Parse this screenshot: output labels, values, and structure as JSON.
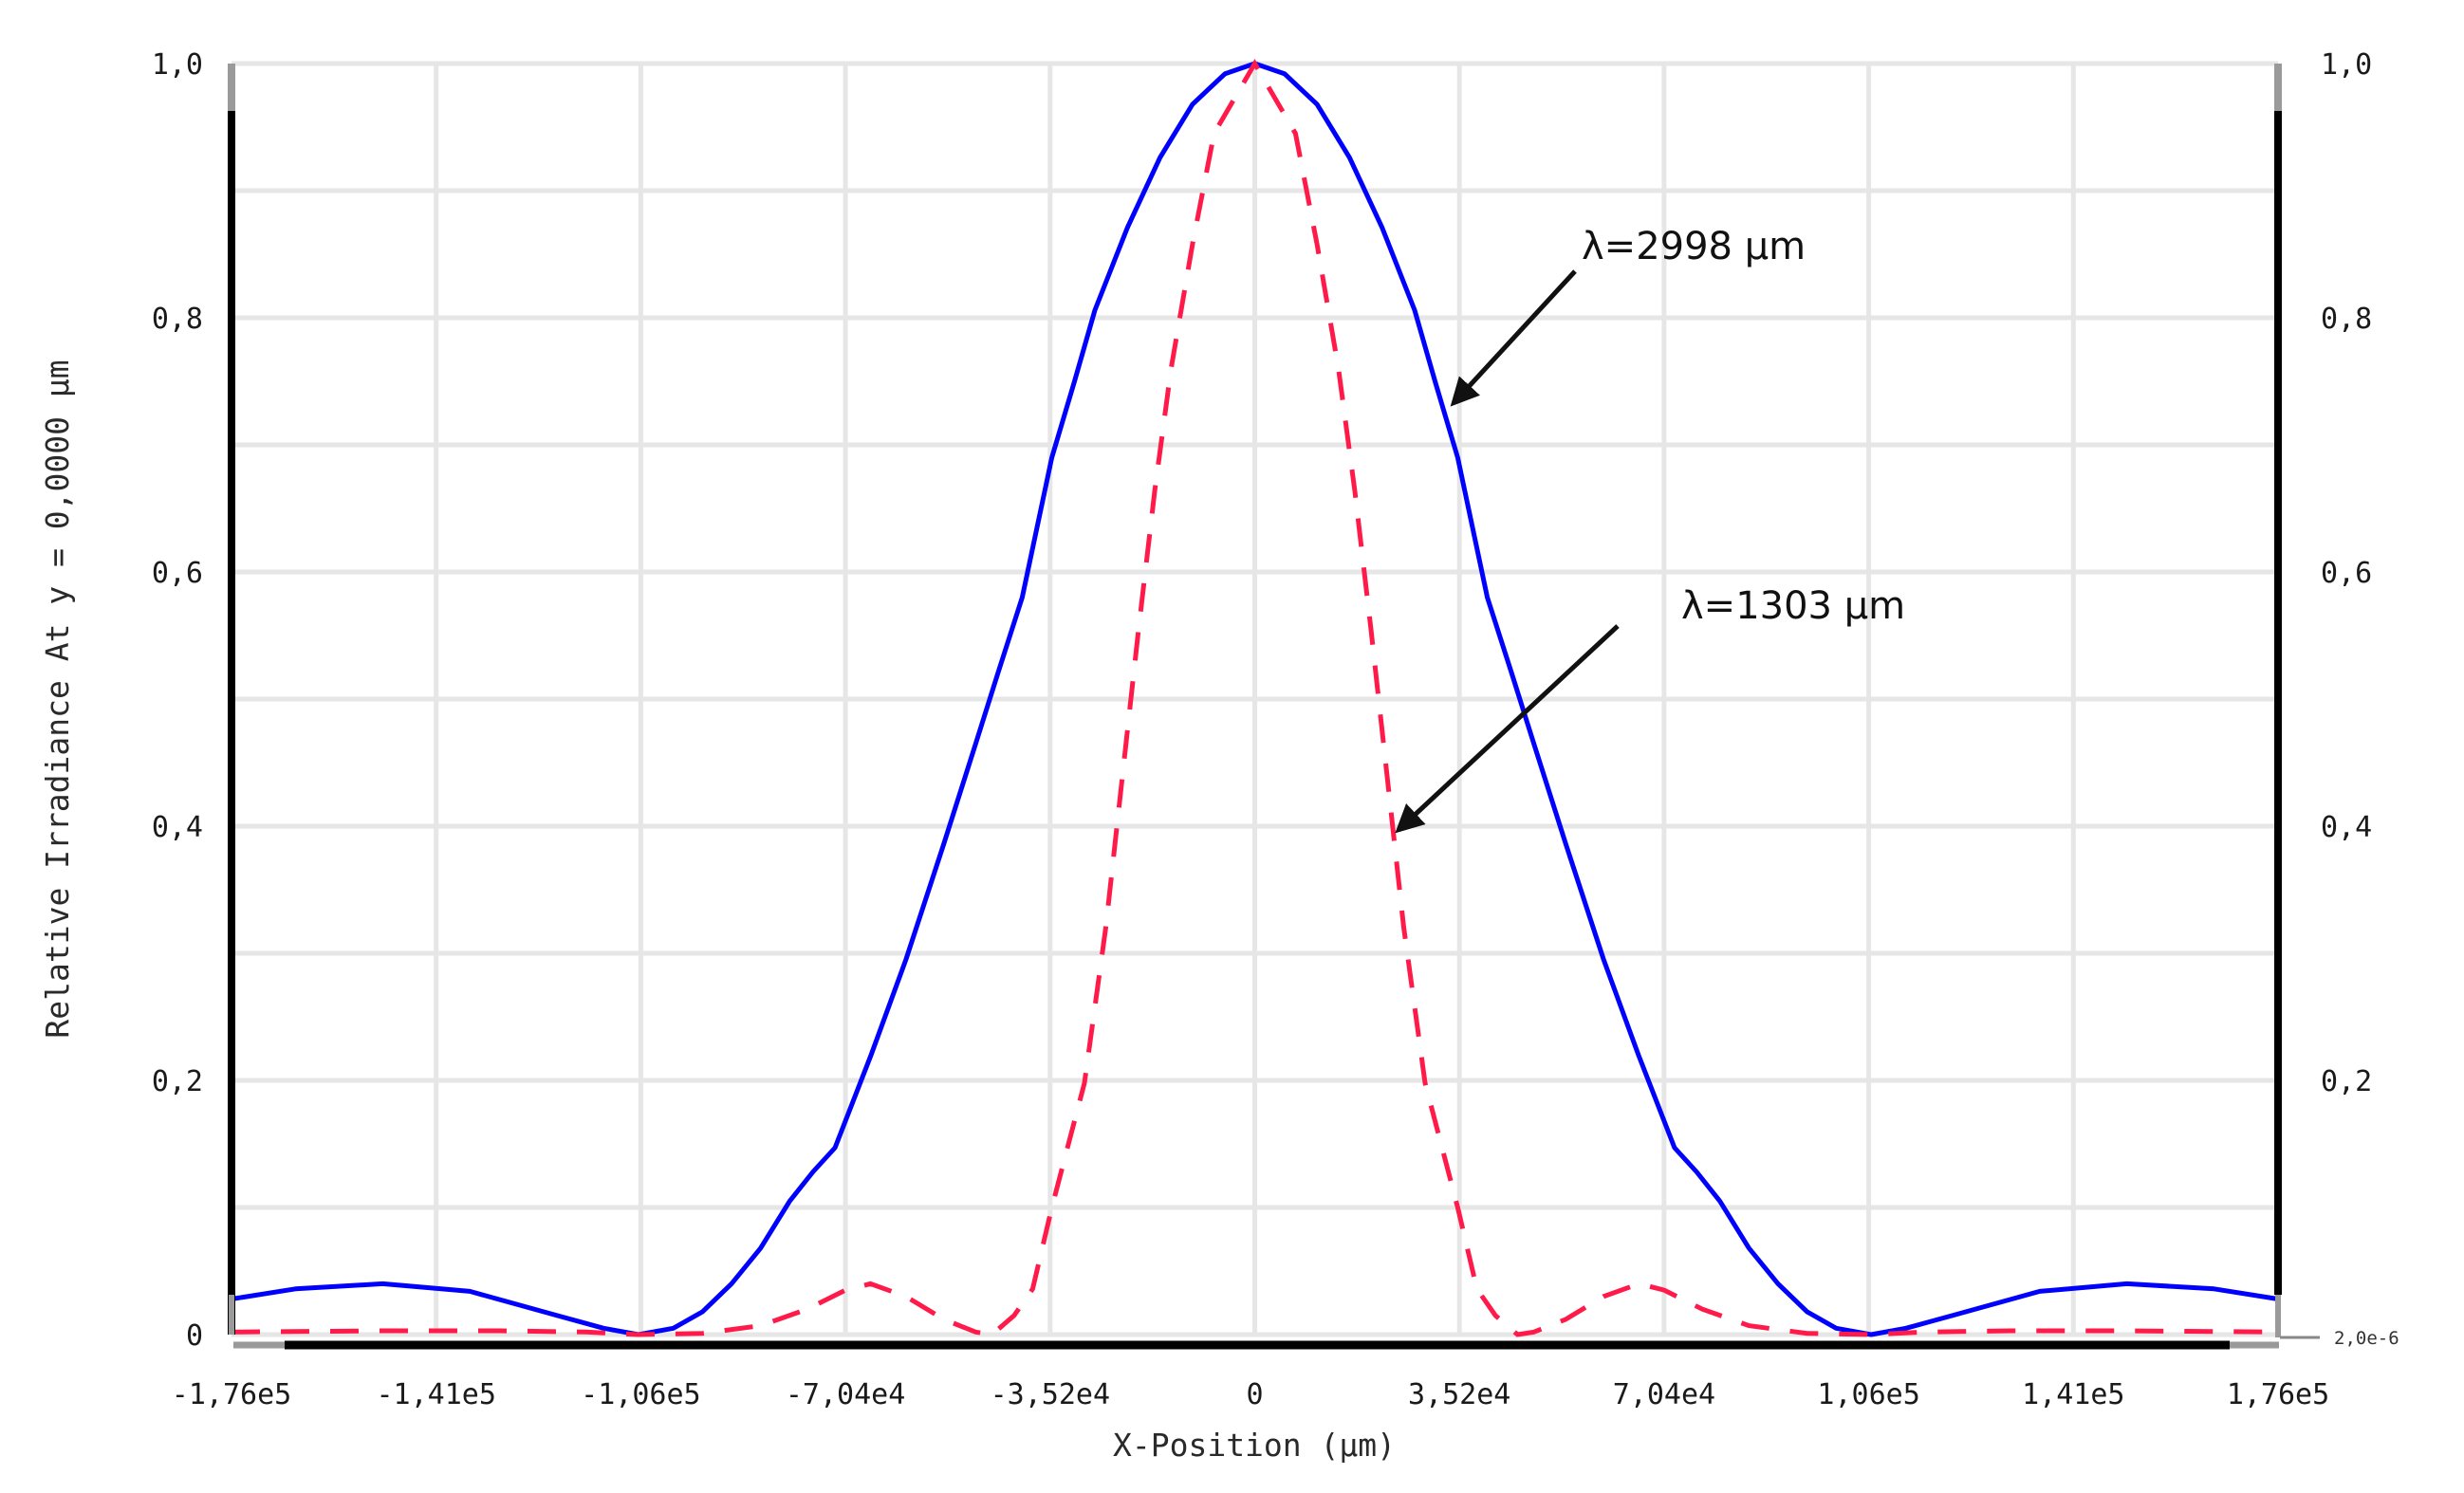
{
  "chart_data": {
    "type": "line",
    "title": "",
    "xlabel": "X-Position (µm)",
    "ylabel": "Relative Irradiance At y = 0,0000 µm",
    "xlim": [
      -176000,
      176000
    ],
    "ylim": [
      0,
      1.0
    ],
    "grid": true,
    "legend": "none (inline annotations with arrows)",
    "x_ticks": [
      {
        "value": -176000,
        "label": "-1,76e5"
      },
      {
        "value": -140800,
        "label": "-1,41e5"
      },
      {
        "value": -105600,
        "label": "-1,06e5"
      },
      {
        "value": -70400,
        "label": "-7,04e4"
      },
      {
        "value": -35200,
        "label": "-3,52e4"
      },
      {
        "value": 0,
        "label": "0"
      },
      {
        "value": 35200,
        "label": "3,52e4"
      },
      {
        "value": 70400,
        "label": "7,04e4"
      },
      {
        "value": 105600,
        "label": "1,06e5"
      },
      {
        "value": 140800,
        "label": "1,41e5"
      },
      {
        "value": 176000,
        "label": "1,76e5"
      }
    ],
    "y_ticks_left": [
      {
        "value": 0,
        "label": "0"
      },
      {
        "value": 0.2,
        "label": "0,2"
      },
      {
        "value": 0.4,
        "label": "0,4"
      },
      {
        "value": 0.6,
        "label": "0,6"
      },
      {
        "value": 0.8,
        "label": "0,8"
      },
      {
        "value": 1.0,
        "label": "1,0"
      }
    ],
    "y_ticks_right": [
      {
        "value": 0.2,
        "label": "0,2"
      },
      {
        "value": 0.4,
        "label": "0,4"
      },
      {
        "value": 0.6,
        "label": "0,6"
      },
      {
        "value": 0.8,
        "label": "0,8"
      },
      {
        "value": 1.0,
        "label": "1,0"
      }
    ],
    "right_axis_min_label": "2,0e-6",
    "series": [
      {
        "name": "λ=2998 µm",
        "color": "#0000ff",
        "style": "solid",
        "x": [
          -176000,
          -165000,
          -150000,
          -135000,
          -120000,
          -112000,
          -106000,
          -100000,
          -95000,
          -90000,
          -85000,
          -80000,
          -76000,
          -72200,
          -66000,
          -60000,
          -53500,
          -48000,
          -44200,
          -40000,
          -34900,
          -31000,
          -27500,
          -21900,
          -16300,
          -10700,
          -5100,
          0,
          5100,
          10700,
          16300,
          21900,
          27500,
          31000,
          34900,
          40000,
          44200,
          48000,
          53500,
          60000,
          66000,
          72200,
          76000,
          80000,
          85000,
          90000,
          95000,
          100000,
          106000,
          112000,
          120000,
          135000,
          150000,
          165000,
          176000
        ],
        "y": [
          0.028,
          0.036,
          0.04,
          0.034,
          0.015,
          0.005,
          0.0,
          0.005,
          0.018,
          0.04,
          0.068,
          0.105,
          0.128,
          0.147,
          0.22,
          0.295,
          0.386,
          0.465,
          0.52,
          0.58,
          0.69,
          0.75,
          0.806,
          0.871,
          0.926,
          0.968,
          0.992,
          1.0,
          0.992,
          0.968,
          0.926,
          0.871,
          0.806,
          0.75,
          0.69,
          0.58,
          0.52,
          0.465,
          0.386,
          0.295,
          0.22,
          0.147,
          0.128,
          0.105,
          0.068,
          0.04,
          0.018,
          0.005,
          0.0,
          0.005,
          0.015,
          0.034,
          0.04,
          0.036,
          0.028
        ]
      },
      {
        "name": "λ=1303 µm",
        "color": "#ff1a4a",
        "style": "dashed",
        "x": [
          -176000,
          -150000,
          -130000,
          -115000,
          -106000,
          -95000,
          -85000,
          -77000,
          -70400,
          -66100,
          -60000,
          -53500,
          -48000,
          -45200,
          -41400,
          -38200,
          -34900,
          -29300,
          -25600,
          -22800,
          -20000,
          -17200,
          -14400,
          -10700,
          -7000,
          0,
          7000,
          10700,
          14400,
          17200,
          20000,
          22800,
          25600,
          29300,
          34900,
          38200,
          41400,
          45200,
          48000,
          53500,
          60000,
          66100,
          70400,
          77000,
          85000,
          95000,
          106000,
          115000,
          130000,
          150000,
          176000
        ],
        "y": [
          0.002,
          0.003,
          0.003,
          0.002,
          0.0,
          0.001,
          0.007,
          0.02,
          0.035,
          0.04,
          0.03,
          0.012,
          0.002,
          0.0,
          0.015,
          0.036,
          0.1,
          0.198,
          0.321,
          0.438,
          0.554,
          0.664,
          0.76,
          0.858,
          0.945,
          1.0,
          0.945,
          0.858,
          0.76,
          0.664,
          0.554,
          0.438,
          0.321,
          0.198,
          0.1,
          0.036,
          0.015,
          0.0,
          0.002,
          0.012,
          0.03,
          0.04,
          0.035,
          0.02,
          0.007,
          0.001,
          0.0,
          0.002,
          0.003,
          0.003,
          0.002
        ]
      }
    ],
    "annotations": [
      {
        "text": "λ=2998 µm",
        "target_series": "λ=2998 µm",
        "text_pos": [
          1667,
          273
        ],
        "arrow_from": [
          1660,
          286
        ],
        "arrow_to": [
          1532,
          425
        ]
      },
      {
        "text": "λ=1303 µm",
        "target_series": "λ=1303 µm",
        "text_pos": [
          1772,
          652
        ],
        "arrow_from": [
          1705,
          660
        ],
        "arrow_to": [
          1474,
          875
        ]
      }
    ]
  }
}
